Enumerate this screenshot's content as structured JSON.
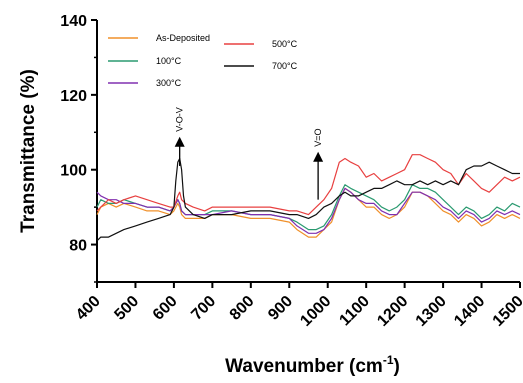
{
  "chart_data": {
    "type": "line",
    "title": "",
    "xlabel": "Wavenumber (cm",
    "xlabel_sup": "-1",
    "xlabel_suffix": ")",
    "ylabel": "Transmittance (%)",
    "xlim": [
      400,
      1500
    ],
    "ylim": [
      70,
      140
    ],
    "xticks": [
      400,
      500,
      600,
      700,
      800,
      900,
      1000,
      1100,
      1200,
      1300,
      1400,
      1500
    ],
    "yticks": [
      80,
      100,
      120,
      140
    ],
    "grid": false,
    "legend_position": "top",
    "annotations": [
      {
        "label": "V-O-V",
        "x": 615,
        "arrow_from": 101,
        "arrow_to": 108
      },
      {
        "label": "V=O",
        "x": 975,
        "arrow_from": 92,
        "arrow_to": 104
      }
    ],
    "series": [
      {
        "name": "As-Deposited",
        "color": "#f0902a",
        "x": [
          400,
          410,
          430,
          450,
          470,
          500,
          530,
          560,
          590,
          600,
          610,
          615,
          620,
          630,
          650,
          680,
          700,
          750,
          800,
          850,
          900,
          920,
          950,
          970,
          990,
          1010,
          1030,
          1045,
          1060,
          1080,
          1100,
          1120,
          1140,
          1160,
          1180,
          1200,
          1220,
          1240,
          1260,
          1280,
          1300,
          1320,
          1340,
          1360,
          1380,
          1400,
          1420,
          1440,
          1460,
          1480,
          1500
        ],
        "y": [
          88,
          90,
          91,
          90,
          91,
          90,
          89,
          89,
          88,
          89,
          91,
          90,
          88,
          87,
          87,
          87,
          88,
          88,
          87,
          87,
          86,
          84,
          82,
          82,
          84,
          86,
          92,
          95,
          94,
          92,
          90,
          90,
          88,
          87,
          88,
          90,
          94,
          94,
          93,
          91,
          89,
          88,
          86,
          88,
          87,
          85,
          86,
          88,
          87,
          88,
          87
        ]
      },
      {
        "name": "100°C",
        "color": "#2a9a70",
        "x": [
          400,
          410,
          430,
          450,
          470,
          500,
          530,
          560,
          590,
          600,
          610,
          615,
          620,
          630,
          650,
          680,
          700,
          750,
          800,
          850,
          900,
          920,
          950,
          970,
          990,
          1010,
          1030,
          1045,
          1060,
          1080,
          1100,
          1120,
          1140,
          1160,
          1180,
          1200,
          1220,
          1240,
          1260,
          1280,
          1300,
          1320,
          1340,
          1360,
          1380,
          1400,
          1420,
          1440,
          1460,
          1480,
          1500
        ],
        "y": [
          90,
          92,
          91,
          91,
          92,
          91,
          90,
          90,
          89,
          90,
          92,
          91,
          89,
          88,
          88,
          88,
          89,
          89,
          88,
          88,
          87,
          86,
          84,
          84,
          85,
          88,
          93,
          96,
          95,
          94,
          93,
          92,
          90,
          89,
          90,
          92,
          96,
          95,
          95,
          94,
          92,
          90,
          88,
          90,
          89,
          87,
          88,
          90,
          89,
          91,
          90
        ]
      },
      {
        "name": "300°C",
        "color": "#8030b0",
        "x": [
          400,
          410,
          430,
          450,
          470,
          500,
          530,
          560,
          590,
          600,
          610,
          615,
          620,
          630,
          650,
          680,
          700,
          750,
          800,
          850,
          900,
          920,
          950,
          970,
          990,
          1010,
          1030,
          1045,
          1060,
          1080,
          1100,
          1120,
          1140,
          1160,
          1180,
          1200,
          1220,
          1240,
          1260,
          1280,
          1300,
          1320,
          1340,
          1360,
          1380,
          1400,
          1420,
          1440,
          1460,
          1480,
          1500
        ],
        "y": [
          94,
          93,
          92,
          92,
          91,
          91,
          90,
          90,
          89,
          90,
          92,
          91,
          89,
          88,
          88,
          88,
          88,
          89,
          88,
          88,
          87,
          85,
          83,
          83,
          84,
          87,
          92,
          95,
          94,
          92,
          91,
          91,
          89,
          88,
          88,
          91,
          94,
          94,
          93,
          92,
          90,
          89,
          87,
          89,
          88,
          86,
          87,
          89,
          88,
          89,
          88
        ]
      },
      {
        "name": "500°C",
        "color": "#e84040",
        "x": [
          400,
          410,
          430,
          450,
          470,
          500,
          530,
          560,
          590,
          600,
          610,
          615,
          620,
          630,
          650,
          680,
          700,
          750,
          800,
          850,
          900,
          920,
          950,
          970,
          990,
          1010,
          1030,
          1045,
          1060,
          1080,
          1100,
          1120,
          1140,
          1160,
          1180,
          1200,
          1220,
          1240,
          1260,
          1280,
          1300,
          1320,
          1340,
          1360,
          1380,
          1400,
          1420,
          1440,
          1460,
          1480,
          1500
        ],
        "y": [
          89,
          90,
          92,
          91,
          92,
          93,
          92,
          91,
          90,
          90,
          93,
          94,
          92,
          91,
          90,
          89,
          90,
          90,
          90,
          90,
          89,
          89,
          88,
          90,
          92,
          95,
          102,
          103,
          102,
          101,
          98,
          99,
          97,
          98,
          99,
          100,
          104,
          104,
          103,
          102,
          100,
          99,
          96,
          99,
          97,
          95,
          94,
          96,
          98,
          97,
          98
        ]
      },
      {
        "name": "700°C",
        "color": "#101010",
        "x": [
          400,
          410,
          430,
          450,
          470,
          500,
          530,
          560,
          590,
          600,
          605,
          610,
          615,
          620,
          625,
          630,
          650,
          680,
          700,
          750,
          800,
          850,
          900,
          920,
          950,
          970,
          990,
          1010,
          1030,
          1045,
          1060,
          1080,
          1100,
          1120,
          1140,
          1160,
          1180,
          1200,
          1220,
          1240,
          1260,
          1280,
          1300,
          1320,
          1340,
          1360,
          1380,
          1400,
          1420,
          1440,
          1460,
          1480,
          1500
        ],
        "y": [
          81,
          82,
          82,
          83,
          84,
          85,
          86,
          87,
          88,
          90,
          97,
          102,
          103,
          100,
          93,
          90,
          88,
          87,
          88,
          88,
          89,
          89,
          88,
          88,
          87,
          88,
          90,
          91,
          93,
          94,
          93,
          93,
          94,
          95,
          95,
          96,
          97,
          96,
          96,
          97,
          96,
          97,
          96,
          97,
          96,
          100,
          101,
          101,
          102,
          101,
          100,
          99,
          99
        ]
      }
    ]
  }
}
